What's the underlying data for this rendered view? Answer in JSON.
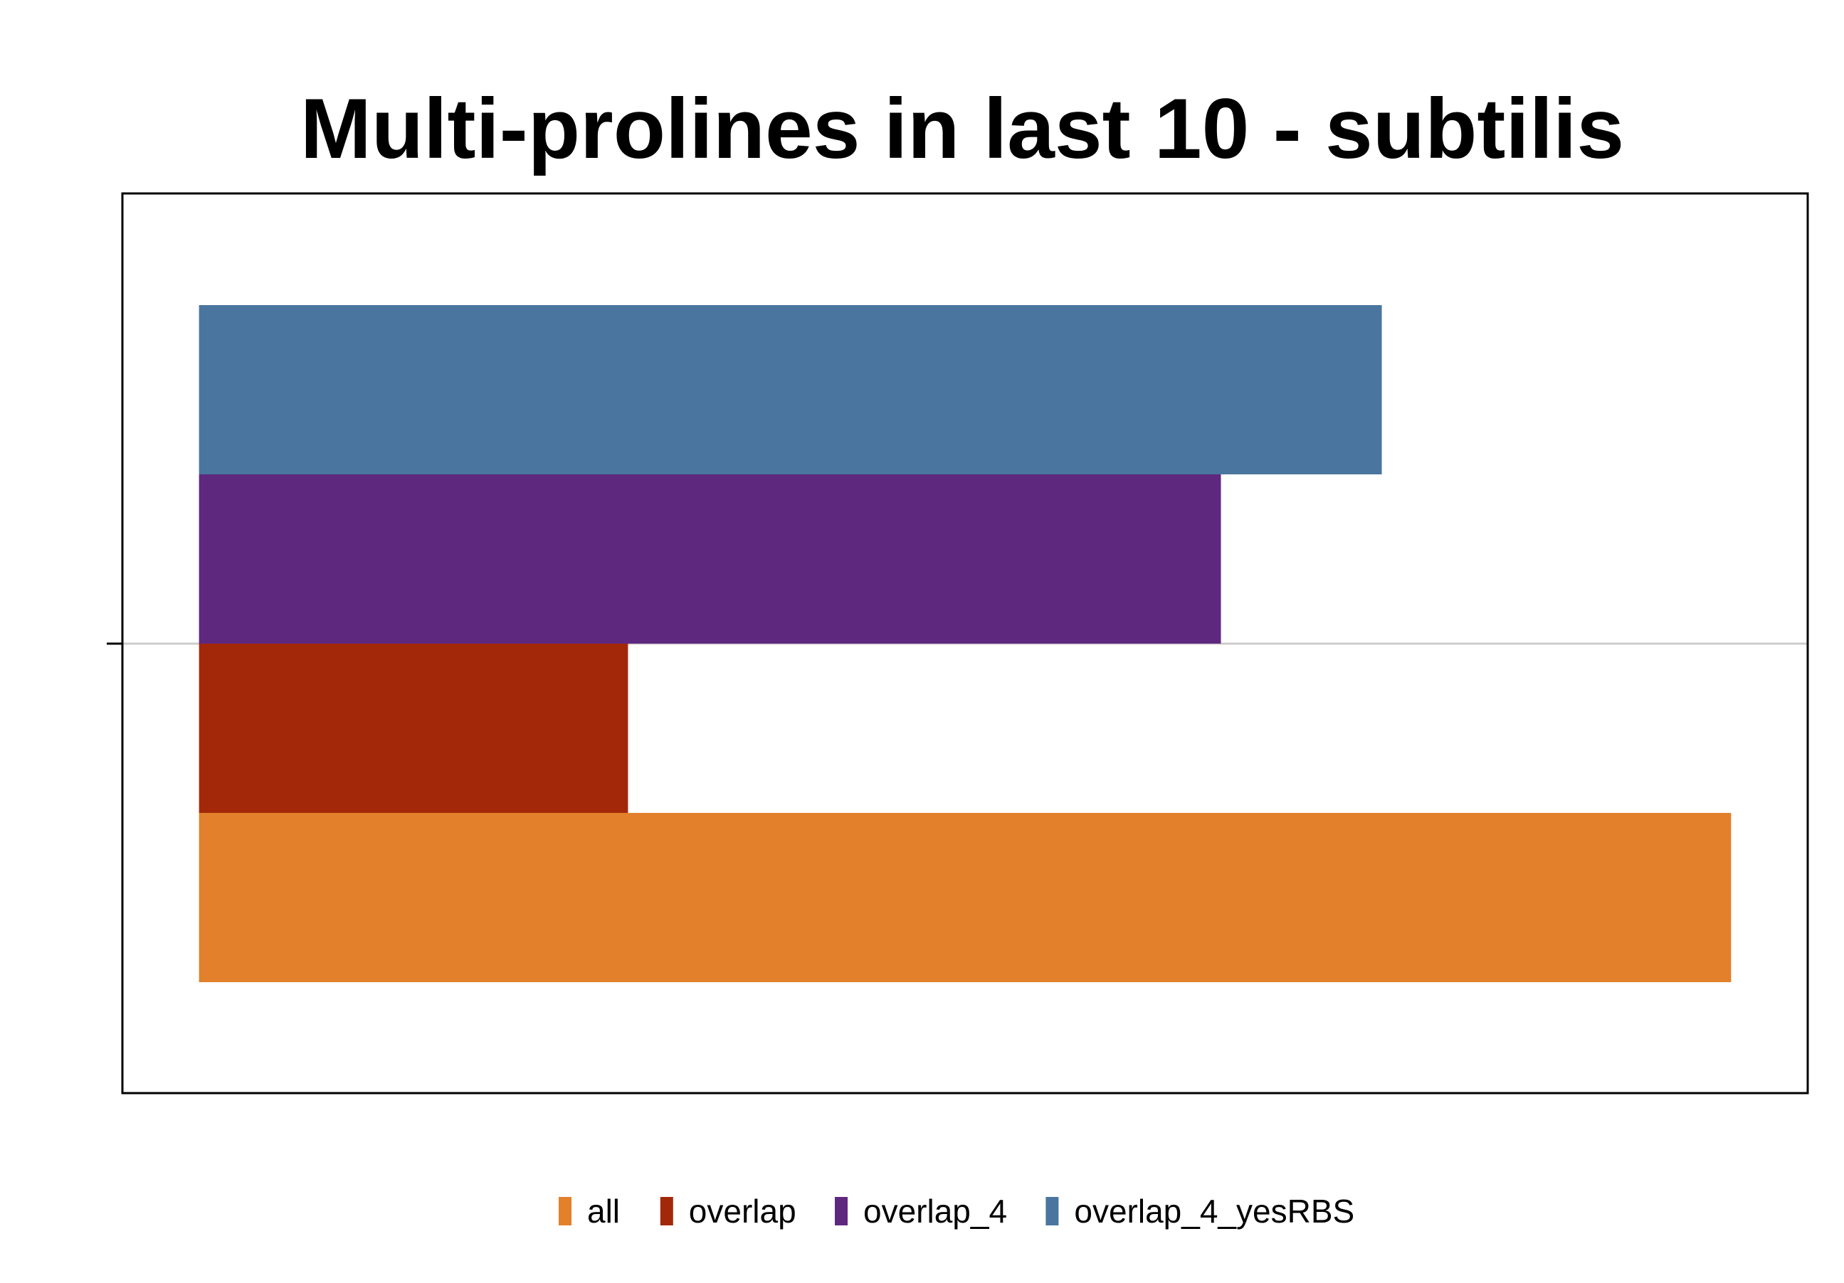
{
  "chart_data": {
    "type": "bar",
    "orientation": "horizontal",
    "title": "Multi-prolines in last 10 - subtilis",
    "xlabel": "",
    "ylabel": "",
    "categories": [
      ""
    ],
    "xlim": [
      -0.05,
      1.05
    ],
    "series": [
      {
        "name": "all",
        "color": "#E2802B",
        "values": [
          1.0
        ]
      },
      {
        "name": "overlap",
        "color": "#A3280A",
        "values": [
          0.28
        ]
      },
      {
        "name": "overlap_4",
        "color": "#5F287F",
        "values": [
          0.667
        ]
      },
      {
        "name": "overlap_4_yesRBS",
        "color": "#4A759E",
        "values": [
          0.772
        ]
      }
    ],
    "grid": "horizontal line at category",
    "legend_position": "bottom"
  }
}
